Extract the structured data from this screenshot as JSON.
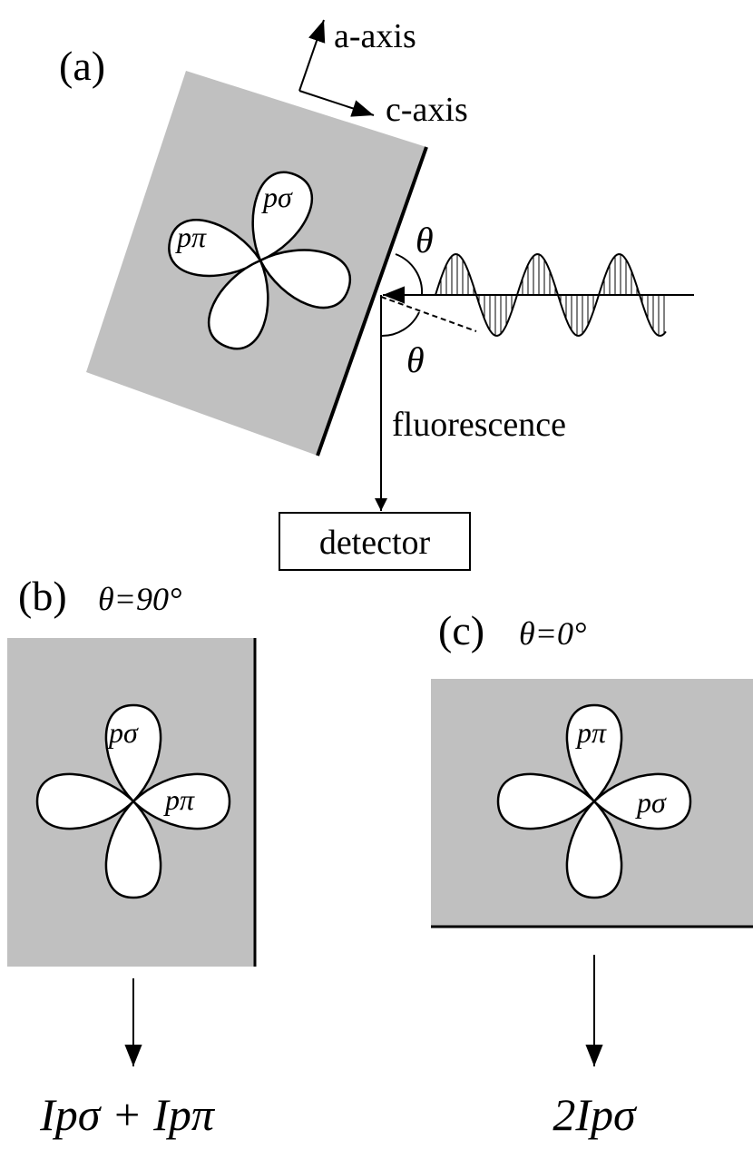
{
  "panel_a": {
    "label": "(a)",
    "axes": [
      "a-axis",
      "c-axis"
    ],
    "orbitals": [
      "pσ",
      "pπ"
    ],
    "angles": [
      "θ",
      "θ"
    ],
    "fluorescence": "fluorescence",
    "detector": "detector"
  },
  "panel_b": {
    "label": "(b)",
    "condition": "θ=90°",
    "orbitals": [
      "pσ",
      "pπ"
    ],
    "intensity": "Ipσ + Ipπ"
  },
  "panel_c": {
    "label": "(c)",
    "condition": "θ=0°",
    "orbitals": [
      "pπ",
      "pσ"
    ],
    "intensity": "2Ipσ"
  }
}
